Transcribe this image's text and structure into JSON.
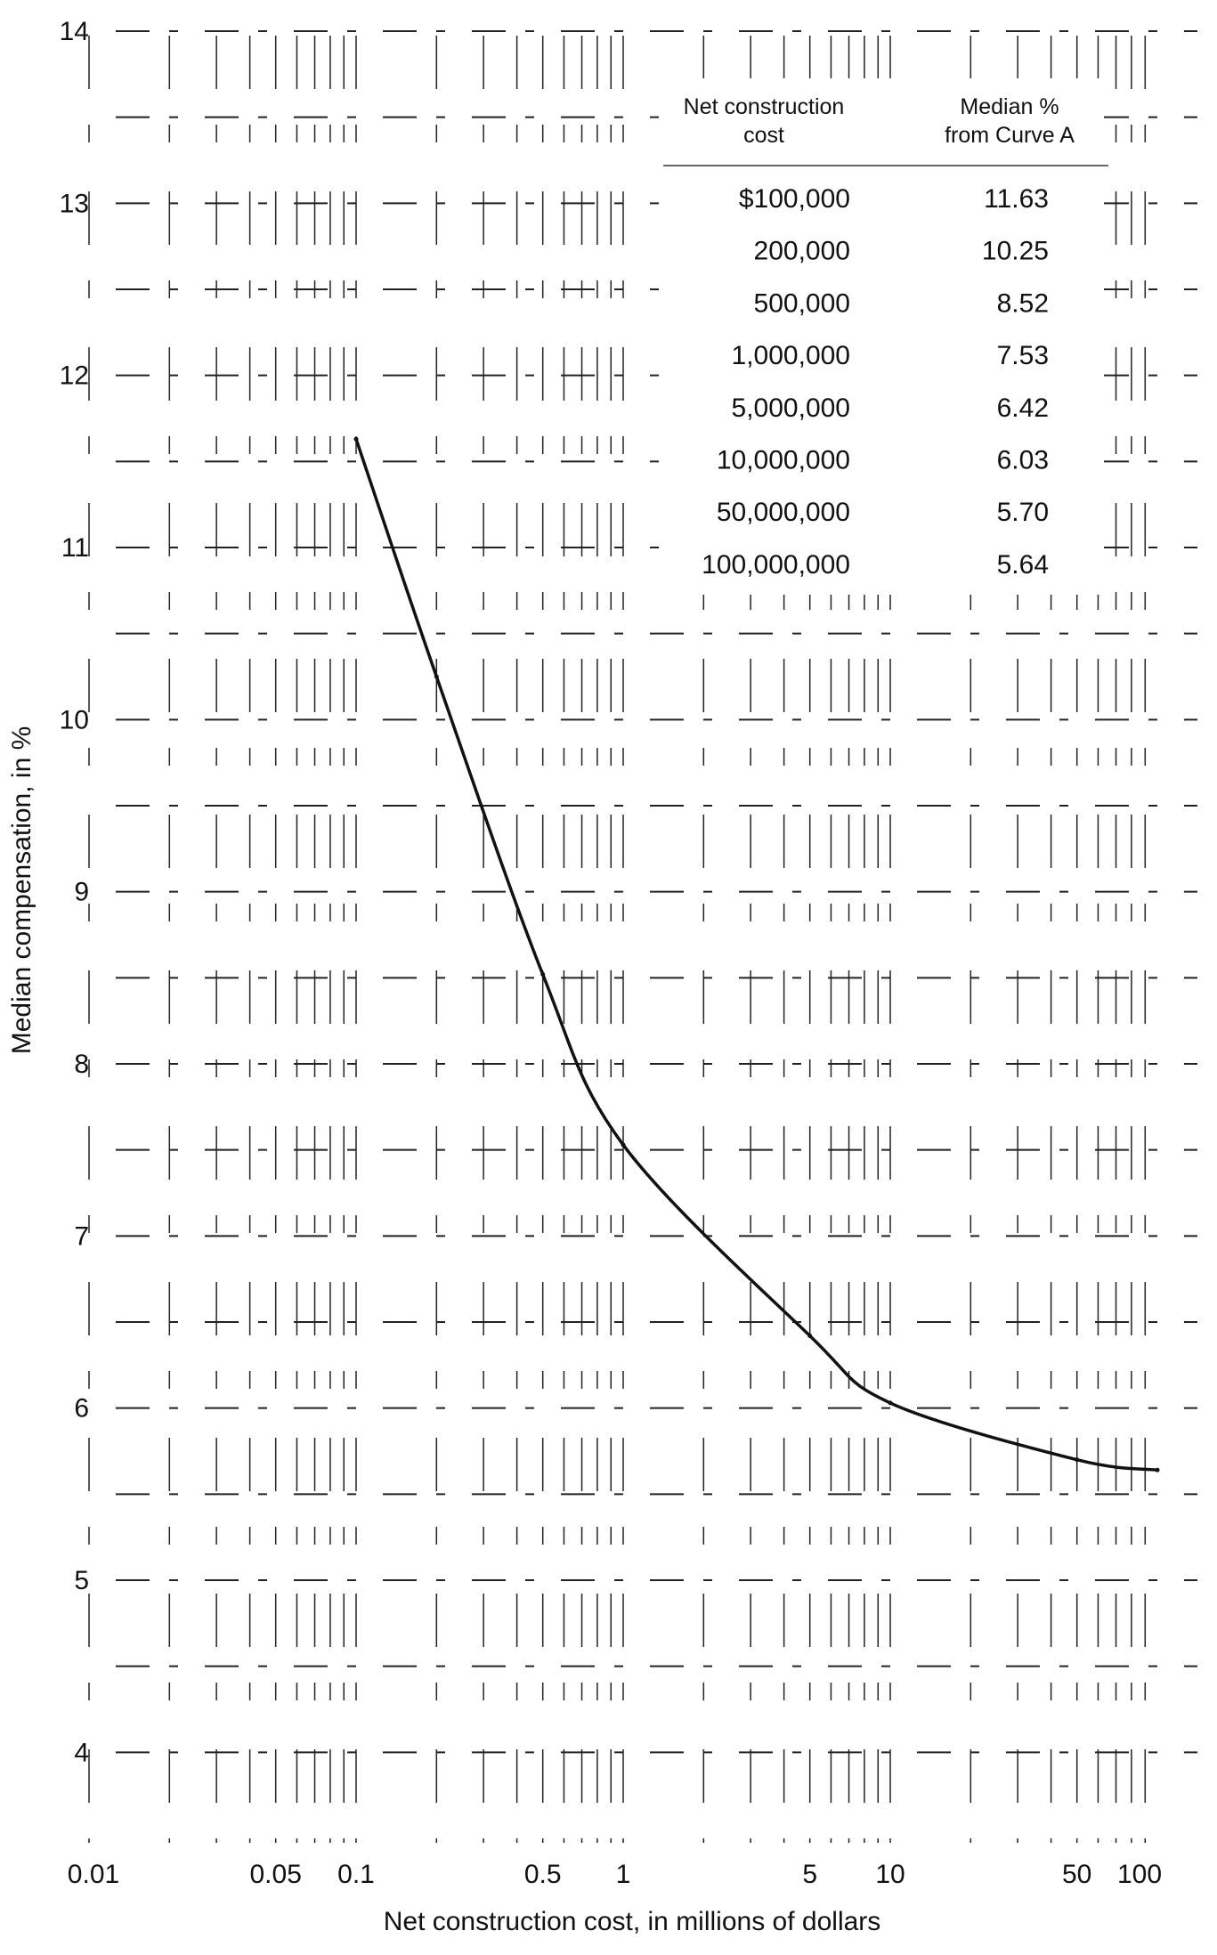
{
  "chart_data": {
    "type": "line",
    "title": "",
    "xlabel": "Net construction cost, in millions of dollars",
    "ylabel": "Median compensation, in %",
    "x_scale": "log",
    "xlim": [
      0.01,
      100
    ],
    "ylim": [
      3.5,
      14
    ],
    "grid": true,
    "x_ticks": [
      {
        "value": 0.01,
        "label": "0.01"
      },
      {
        "value": 0.05,
        "label": "0.05"
      },
      {
        "value": 0.1,
        "label": "0.1"
      },
      {
        "value": 0.5,
        "label": "0.5"
      },
      {
        "value": 1,
        "label": "1"
      },
      {
        "value": 5,
        "label": "5"
      },
      {
        "value": 10,
        "label": "10"
      },
      {
        "value": 50,
        "label": "50"
      },
      {
        "value": 100,
        "label": "100"
      }
    ],
    "y_ticks": [
      {
        "value": 4,
        "label": "4"
      },
      {
        "value": 5,
        "label": "5"
      },
      {
        "value": 6,
        "label": "6"
      },
      {
        "value": 7,
        "label": "7"
      },
      {
        "value": 8,
        "label": "8"
      },
      {
        "value": 9,
        "label": "9"
      },
      {
        "value": 10,
        "label": "10"
      },
      {
        "value": 11,
        "label": "11"
      },
      {
        "value": 12,
        "label": "12"
      },
      {
        "value": 13,
        "label": "13"
      },
      {
        "value": 14,
        "label": "14"
      }
    ],
    "series": [
      {
        "x": [
          0.1,
          0.2,
          0.5,
          1,
          5,
          10,
          50,
          100
        ],
        "y": [
          11.63,
          10.25,
          8.52,
          7.53,
          6.42,
          6.03,
          5.7,
          5.64
        ]
      }
    ],
    "table": {
      "headers": [
        [
          "Net construction",
          "cost"
        ],
        [
          "Median %",
          "from Curve A"
        ]
      ],
      "rows": [
        [
          "$100,000",
          "11.63"
        ],
        [
          "200,000",
          "10.25"
        ],
        [
          "500,000",
          "8.52"
        ],
        [
          "1,000,000",
          "7.53"
        ],
        [
          "5,000,000",
          "6.42"
        ],
        [
          "10,000,000",
          "6.03"
        ],
        [
          "50,000,000",
          "5.70"
        ],
        [
          "100,000,000",
          "5.64"
        ]
      ]
    }
  }
}
